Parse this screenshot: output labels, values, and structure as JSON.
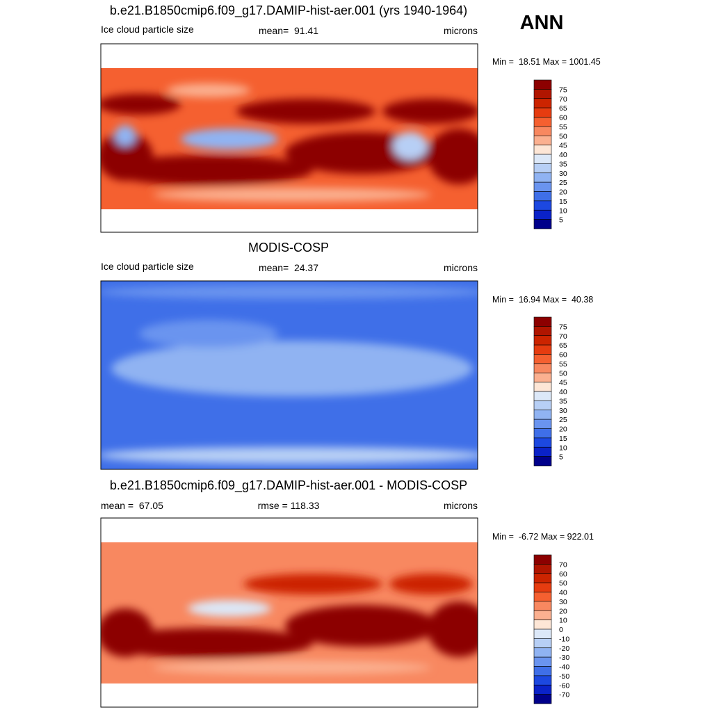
{
  "season": "ANN",
  "colorbar_colors": [
    "#8c0000",
    "#b01500",
    "#cc2400",
    "#e63c10",
    "#f56030",
    "#f88860",
    "#fbb090",
    "#fde6d6",
    "#dce8f8",
    "#b7cff5",
    "#90b3f2",
    "#6a94ef",
    "#3f6fe8",
    "#1c48e0",
    "#0a22c8",
    "#00008a"
  ],
  "panels": [
    {
      "title": "b.e21.B1850cmip6.f09_g17.DAMIP-hist-aer.001 (yrs 1940-1964)",
      "left_label": "Ice cloud particle size",
      "center_label": "mean=  91.41",
      "right_label": "microns",
      "stats": "Min =  18.51 Max = 1001.45",
      "colorbar_labels": [
        "75",
        "70",
        "65",
        "60",
        "55",
        "50",
        "45",
        "40",
        "35",
        "30",
        "25",
        "20",
        "15",
        "10",
        "5"
      ]
    },
    {
      "title": "MODIS-COSP",
      "left_label": "Ice cloud particle size",
      "center_label": "mean=  24.37",
      "right_label": "microns",
      "stats": "Min =  16.94 Max =  40.38",
      "colorbar_labels": [
        "75",
        "70",
        "65",
        "60",
        "55",
        "50",
        "45",
        "40",
        "35",
        "30",
        "25",
        "20",
        "15",
        "10",
        "5"
      ]
    },
    {
      "title": "b.e21.B1850cmip6.f09_g17.DAMIP-hist-aer.001 - MODIS-COSP",
      "left_label": "mean =  67.05",
      "center_label": "rmse = 118.33",
      "right_label": "microns",
      "stats": "Min =  -6.72 Max = 922.01",
      "colorbar_labels": [
        "70",
        "60",
        "50",
        "40",
        "30",
        "20",
        "10",
        "0",
        "-10",
        "-20",
        "-30",
        "-40",
        "-50",
        "-60",
        "-70"
      ]
    }
  ]
}
